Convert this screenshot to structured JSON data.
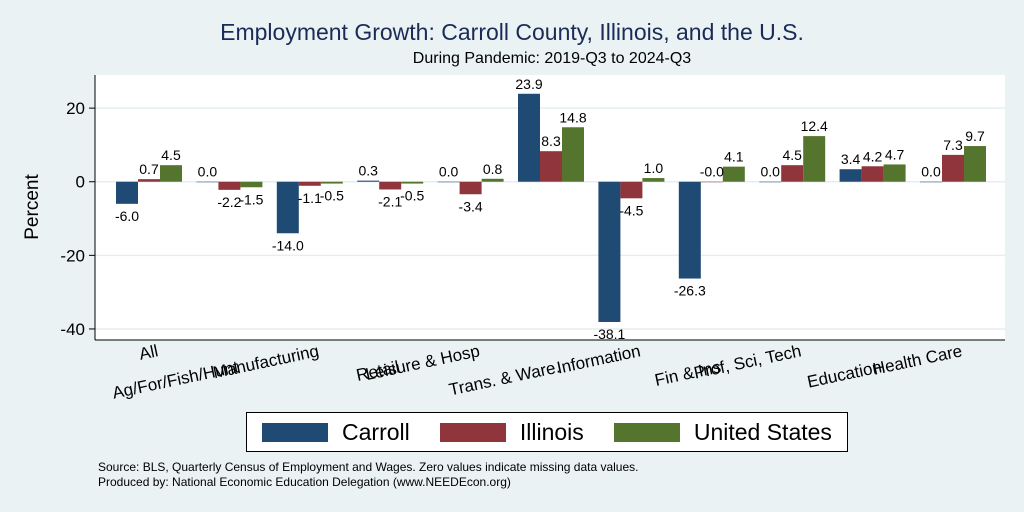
{
  "chart_data": {
    "type": "bar",
    "title": "Employment Growth: Carroll County, Illinois, and the U.S.",
    "subtitle": "During Pandemic: 2019-Q3 to 2024-Q3",
    "xlabel": "",
    "ylabel": "Percent",
    "ylim": [
      -43,
      29
    ],
    "yticks": [
      -40,
      -20,
      0,
      20
    ],
    "grid": true,
    "legend_position": "bottom",
    "categories": [
      "All",
      "Ag/For/Fish/Hunt",
      "Manufacturing",
      "Retail",
      "Leisure & Hosp",
      "Trans. & Ware.",
      "Information",
      "Fin & Ins",
      "Prof, Sci, Tech",
      "Education",
      "Health Care"
    ],
    "series": [
      {
        "name": "Carroll",
        "color": "#1f4a73",
        "values": [
          -6.0,
          0.0,
          -14.0,
          0.3,
          0.0,
          23.9,
          -38.1,
          -26.3,
          0.0,
          3.4,
          0.0
        ],
        "labels": [
          "-6.0",
          "0.0",
          "-14.0",
          "0.3",
          "0.0",
          "23.9",
          "-38.1",
          "-26.3",
          "0.0",
          "3.4",
          "0.0"
        ]
      },
      {
        "name": "Illinois",
        "color": "#90353b",
        "values": [
          0.7,
          -2.2,
          -1.1,
          -2.1,
          -3.4,
          8.3,
          -4.5,
          -0.0,
          4.5,
          4.2,
          7.3
        ],
        "labels": [
          "0.7",
          "-2.2",
          "-1.1",
          "-2.1",
          "-3.4",
          "8.3",
          "-4.5",
          "-0.0",
          "4.5",
          "4.2",
          "7.3"
        ]
      },
      {
        "name": "United States",
        "color": "#55752f",
        "values": [
          4.5,
          -1.5,
          -0.5,
          -0.5,
          0.8,
          14.8,
          1.0,
          4.1,
          12.4,
          4.7,
          9.7
        ],
        "labels": [
          "4.5",
          "-1.5",
          "-0.5",
          "-0.5",
          "0.8",
          "14.8",
          "1.0",
          "4.1",
          "12.4",
          "4.7",
          "9.7"
        ]
      }
    ]
  },
  "notes": {
    "source": "Source: BLS, Quarterly Census of Employment and Wages. Zero values indicate missing data values.",
    "produced": "Produced by: National Economic Education Delegation (www.NEEDEcon.org)"
  }
}
